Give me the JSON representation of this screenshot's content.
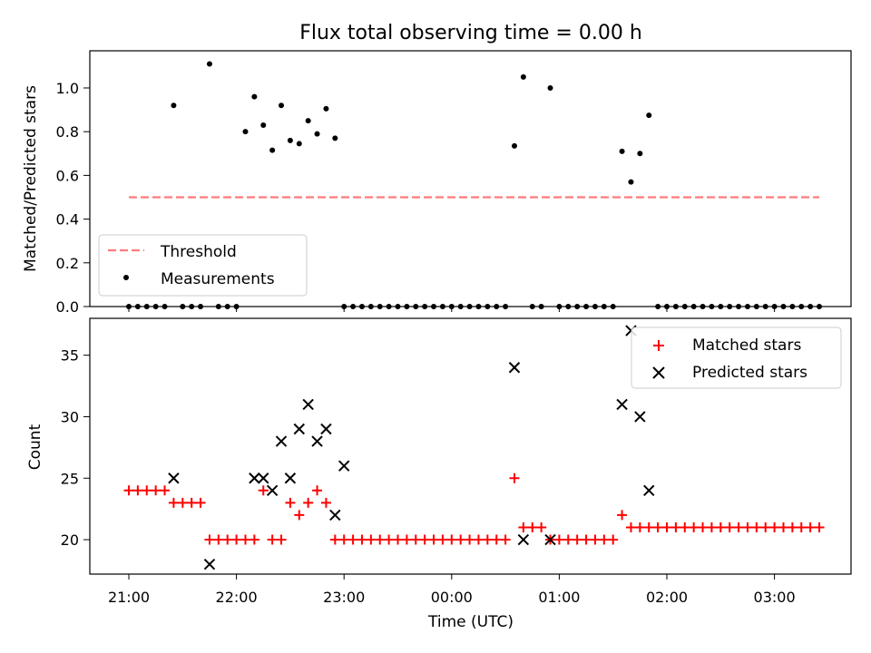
{
  "chart_data": [
    {
      "type": "scatter",
      "title": "Flux total observing time = 0.00 h",
      "ylabel": "Matched/Predicted stars",
      "xlabel": "",
      "ylim": [
        0,
        1.17
      ],
      "yticks": [
        "0.0",
        "0.2",
        "0.4",
        "0.6",
        "0.8",
        "1.0"
      ],
      "xticks": [],
      "legend_position": "lower-left",
      "series": [
        {
          "name": "Threshold",
          "kind": "dashed-line",
          "color": "#ff7b7b",
          "x": [
            "21:00",
            "03:25"
          ],
          "y": [
            0.5,
            0.5
          ]
        },
        {
          "name": "Measurements",
          "kind": "points",
          "color": "#000000",
          "x": [
            "21:00",
            "21:05",
            "21:10",
            "21:15",
            "21:20",
            "21:25",
            "21:30",
            "21:35",
            "21:40",
            "21:45",
            "21:50",
            "21:55",
            "22:00",
            "22:05",
            "22:10",
            "22:15",
            "22:20",
            "22:25",
            "22:30",
            "22:35",
            "22:40",
            "22:45",
            "22:50",
            "22:55",
            "23:00",
            "23:05",
            "23:10",
            "23:15",
            "23:20",
            "23:25",
            "23:30",
            "23:35",
            "23:40",
            "23:45",
            "23:50",
            "23:55",
            "00:00",
            "00:05",
            "00:10",
            "00:15",
            "00:20",
            "00:25",
            "00:30",
            "00:35",
            "00:40",
            "00:45",
            "00:50",
            "00:55",
            "01:00",
            "01:05",
            "01:10",
            "01:15",
            "01:20",
            "01:25",
            "01:30",
            "01:35",
            "01:40",
            "01:45",
            "01:50",
            "01:55",
            "02:00",
            "02:05",
            "02:10",
            "02:15",
            "02:20",
            "02:25",
            "02:30",
            "02:35",
            "02:40",
            "02:45",
            "02:50",
            "02:55",
            "03:00",
            "03:05",
            "03:10",
            "03:15",
            "03:20",
            "03:25"
          ],
          "y": [
            0,
            0,
            0,
            0,
            0,
            0.92,
            0,
            0,
            0,
            1.11,
            0,
            0,
            0,
            0.8,
            0.96,
            0.83,
            0.715,
            0.92,
            0.76,
            0.745,
            0.85,
            0.79,
            0.905,
            0.77,
            0,
            0,
            0,
            0,
            0,
            0,
            0,
            0,
            0,
            0,
            0,
            0,
            0,
            0,
            0,
            0,
            0,
            0,
            0,
            0.735,
            1.05,
            0,
            0,
            1.0,
            0,
            0,
            0,
            0,
            0,
            0,
            0,
            0.71,
            0.57,
            0.7,
            0.875,
            0,
            0,
            0,
            0,
            0,
            0,
            0,
            0,
            0,
            0,
            0,
            0,
            0,
            0,
            0,
            0,
            0,
            0,
            0
          ]
        }
      ]
    },
    {
      "type": "scatter",
      "title": "",
      "ylabel": "Count",
      "xlabel": "Time (UTC)",
      "ylim": [
        17.2,
        38.0
      ],
      "yticks": [
        "20",
        "25",
        "30",
        "35"
      ],
      "xticks": [
        "21:00",
        "22:00",
        "23:00",
        "00:00",
        "01:00",
        "02:00",
        "03:00"
      ],
      "legend_position": "top-right",
      "series": [
        {
          "name": "Matched stars",
          "kind": "plus",
          "color": "#ff0000",
          "x": [
            "21:00",
            "21:05",
            "21:10",
            "21:15",
            "21:20",
            "21:25",
            "21:30",
            "21:35",
            "21:40",
            "21:45",
            "21:50",
            "21:55",
            "22:00",
            "22:05",
            "22:10",
            "22:15",
            "22:20",
            "22:25",
            "22:30",
            "22:35",
            "22:40",
            "22:45",
            "22:50",
            "22:55",
            "23:00",
            "23:05",
            "23:10",
            "23:15",
            "23:20",
            "23:25",
            "23:30",
            "23:35",
            "23:40",
            "23:45",
            "23:50",
            "23:55",
            "00:00",
            "00:05",
            "00:10",
            "00:15",
            "00:20",
            "00:25",
            "00:30",
            "00:35",
            "00:40",
            "00:45",
            "00:50",
            "00:55",
            "01:00",
            "01:05",
            "01:10",
            "01:15",
            "01:20",
            "01:25",
            "01:30",
            "01:35",
            "01:40",
            "01:45",
            "01:50",
            "01:55",
            "02:00",
            "02:05",
            "02:10",
            "02:15",
            "02:20",
            "02:25",
            "02:30",
            "02:35",
            "02:40",
            "02:45",
            "02:50",
            "02:55",
            "03:00",
            "03:05",
            "03:10",
            "03:15",
            "03:20",
            "03:25"
          ],
          "y": [
            24,
            24,
            24,
            24,
            24,
            23,
            23,
            23,
            23,
            20,
            20,
            20,
            20,
            20,
            20,
            24,
            20,
            20,
            23,
            22,
            23,
            24,
            23,
            20,
            20,
            20,
            20,
            20,
            20,
            20,
            20,
            20,
            20,
            20,
            20,
            20,
            20,
            20,
            20,
            20,
            20,
            20,
            20,
            25,
            21,
            21,
            21,
            20,
            20,
            20,
            20,
            20,
            20,
            20,
            20,
            22,
            21,
            21,
            21,
            21,
            21,
            21,
            21,
            21,
            21,
            21,
            21,
            21,
            21,
            21,
            21,
            21,
            21,
            21,
            21,
            21,
            21,
            21
          ]
        },
        {
          "name": "Predicted stars",
          "kind": "x",
          "color": "#000000",
          "x": [
            "21:25",
            "21:45",
            "22:10",
            "22:15",
            "22:20",
            "22:25",
            "22:30",
            "22:35",
            "22:40",
            "22:45",
            "22:50",
            "22:55",
            "23:00",
            "00:35",
            "00:40",
            "00:55",
            "01:35",
            "01:40",
            "01:45",
            "01:50"
          ],
          "y": [
            25,
            18,
            25,
            25,
            24,
            28,
            25,
            29,
            31,
            28,
            29,
            22,
            26,
            34,
            20,
            20,
            31,
            37,
            30,
            24
          ]
        }
      ]
    }
  ]
}
